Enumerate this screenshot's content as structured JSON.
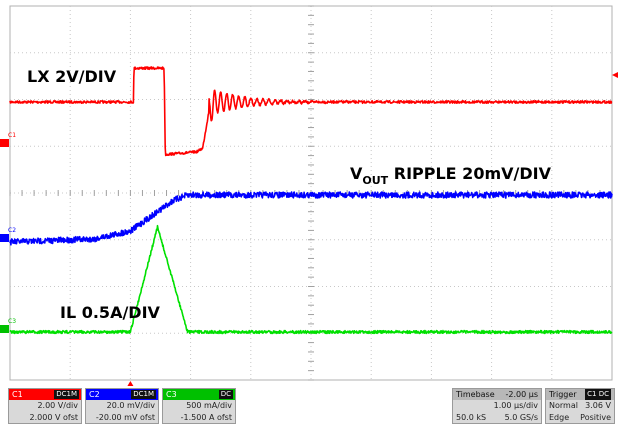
{
  "chart_data": {
    "type": "line",
    "grid": true,
    "divisions": {
      "x": 10,
      "y": 8
    },
    "annotations": [
      {
        "id": "lx",
        "text": "LX 2V/DIV"
      },
      {
        "id": "vout",
        "main": "V",
        "sub": "OUT",
        "rest": " RIPPLE 20mV/DIV"
      },
      {
        "id": "il",
        "text": "IL 0.5A/DIV"
      }
    ],
    "time_axis": {
      "unit": "µs",
      "per_div": 1.0,
      "range": [
        -2,
        8
      ]
    },
    "series": [
      {
        "key": "C1",
        "signal": "LX",
        "color": "#ff0000",
        "unit": "V",
        "t": [
          -2.0,
          0.05,
          0.06,
          0.55,
          0.56,
          0.58,
          1.1,
          1.2,
          1.3,
          1.4,
          8.0
        ],
        "v": [
          5.2,
          5.2,
          9.0,
          9.0,
          9.0,
          -0.7,
          -0.4,
          0.0,
          4.0,
          5.2,
          5.2
        ],
        "ring": {
          "start": 1.3,
          "amplitude": 1.6,
          "period": 0.1,
          "decay": 0.55
        }
      },
      {
        "key": "C2",
        "signal": "VOUT ripple",
        "color": "#0000ff",
        "unit": "mV",
        "t": [
          -2.0,
          -0.6,
          0.0,
          0.4,
          0.7,
          0.9,
          1.0,
          8.0
        ],
        "v": [
          -90.0,
          -87.0,
          -79.0,
          -62.0,
          -49.0,
          -44.0,
          -43.0,
          -43.0
        ]
      },
      {
        "key": "C3",
        "signal": "IL",
        "color": "#00e000",
        "unit": "A",
        "t": [
          -2.0,
          0.0,
          0.45,
          0.95,
          8.0
        ],
        "v": [
          -1.5,
          -1.5,
          -0.45,
          -1.5,
          -1.5
        ]
      }
    ]
  },
  "channels": [
    {
      "name": "C1",
      "coupling": "DC1M",
      "color": "#ff0000",
      "scale": "2.00 V/div",
      "offset": "2.000 V ofst"
    },
    {
      "name": "C2",
      "coupling": "DC1M",
      "color": "#0000ff",
      "scale": "20.0 mV/div",
      "offset": "-20.00 mV ofst"
    },
    {
      "name": "C3",
      "coupling": "DC",
      "color": "#00e000",
      "scale": "500 mA/div",
      "offset": "-1.500 A ofst"
    }
  ],
  "timebase": {
    "label": "Timebase",
    "delay": "-2.00 µs",
    "per_div": "1.00 µs/div",
    "samples": "50.0 kS",
    "rate": "5.0 GS/s"
  },
  "trigger": {
    "label": "Trigger",
    "source": "C1 DC",
    "mode": "Normal",
    "level": "3.06 V",
    "type": "Edge",
    "slope": "Positive"
  },
  "markers": {
    "c1": "C1",
    "c2": "C2",
    "c3": "C3"
  }
}
